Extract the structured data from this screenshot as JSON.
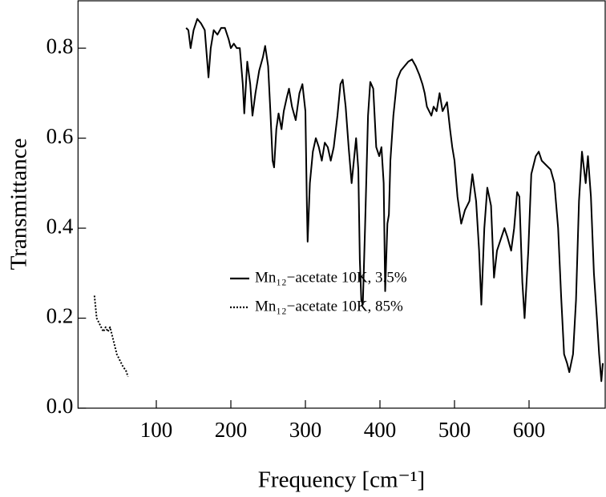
{
  "chart_data": {
    "type": "line",
    "x_label": "Frequency [cm⁻¹]",
    "y_label": "Transmittance",
    "xlim": [
      -5,
      700
    ],
    "ylim": [
      0,
      0.907
    ],
    "xticks": [
      100,
      200,
      300,
      400,
      500,
      600
    ],
    "yticks": [
      {
        "value": 0,
        "label": "0.0"
      },
      0.2,
      0.4,
      0.6,
      0.8
    ],
    "series": [
      {
        "name": "Mn₁₂−acetate 10K, 3.5%",
        "color": "#000000",
        "dash": "solid",
        "x": [
          140,
          143,
          146,
          150,
          155,
          160,
          165,
          170,
          173,
          177,
          182,
          187,
          192,
          197,
          200,
          204,
          208,
          212,
          216,
          218,
          222,
          226,
          229,
          233,
          238,
          243,
          246,
          250,
          253,
          256,
          258,
          261,
          264,
          268,
          271,
          275,
          278,
          282,
          287,
          292,
          296,
          300,
          302,
          303,
          306,
          310,
          314,
          318,
          322,
          326,
          330,
          334,
          338,
          343,
          347,
          350,
          354,
          358,
          362,
          365,
          368,
          371,
          373,
          375,
          377,
          380,
          384,
          387,
          391,
          395,
          399,
          402,
          405,
          407,
          410,
          412,
          414,
          418,
          423,
          428,
          433,
          438,
          443,
          448,
          453,
          457,
          460,
          463,
          466,
          469,
          472,
          476,
          480,
          484,
          487,
          490,
          494,
          497,
          500,
          504,
          509,
          514,
          520,
          524,
          529,
          533,
          536,
          540,
          544,
          549,
          553,
          557,
          563,
          567,
          571,
          576,
          580,
          584,
          587,
          591,
          594,
          599,
          603,
          609,
          613,
          617,
          623,
          629,
          634,
          639,
          643,
          647,
          651,
          654,
          659,
          663,
          667,
          671,
          676,
          679,
          683,
          687,
          691,
          694,
          697,
          699
        ],
        "values": [
          0.845,
          0.84,
          0.8,
          0.84,
          0.865,
          0.855,
          0.84,
          0.735,
          0.8,
          0.84,
          0.83,
          0.845,
          0.845,
          0.82,
          0.8,
          0.81,
          0.8,
          0.8,
          0.72,
          0.655,
          0.77,
          0.72,
          0.65,
          0.7,
          0.75,
          0.78,
          0.805,
          0.76,
          0.66,
          0.55,
          0.535,
          0.62,
          0.655,
          0.62,
          0.66,
          0.69,
          0.71,
          0.67,
          0.64,
          0.7,
          0.72,
          0.66,
          0.45,
          0.37,
          0.5,
          0.57,
          0.6,
          0.58,
          0.55,
          0.59,
          0.58,
          0.55,
          0.58,
          0.65,
          0.72,
          0.73,
          0.67,
          0.58,
          0.5,
          0.55,
          0.6,
          0.53,
          0.33,
          0.24,
          0.23,
          0.4,
          0.65,
          0.725,
          0.71,
          0.58,
          0.56,
          0.58,
          0.5,
          0.26,
          0.41,
          0.43,
          0.55,
          0.65,
          0.73,
          0.75,
          0.76,
          0.77,
          0.775,
          0.76,
          0.74,
          0.72,
          0.7,
          0.67,
          0.66,
          0.65,
          0.67,
          0.66,
          0.7,
          0.66,
          0.67,
          0.68,
          0.62,
          0.58,
          0.55,
          0.47,
          0.41,
          0.44,
          0.46,
          0.52,
          0.46,
          0.35,
          0.23,
          0.4,
          0.49,
          0.45,
          0.29,
          0.35,
          0.38,
          0.4,
          0.38,
          0.35,
          0.4,
          0.48,
          0.47,
          0.28,
          0.2,
          0.35,
          0.52,
          0.56,
          0.57,
          0.55,
          0.54,
          0.53,
          0.5,
          0.4,
          0.25,
          0.12,
          0.1,
          0.08,
          0.12,
          0.24,
          0.46,
          0.57,
          0.5,
          0.56,
          0.47,
          0.3,
          0.2,
          0.12,
          0.06,
          0.1
        ]
      },
      {
        "name": "Mn₁₂−acetate 10K, 85%",
        "color": "#000000",
        "dash": "dotted",
        "x": [
          17,
          20,
          23,
          26,
          29,
          32,
          35,
          38,
          41,
          44,
          47,
          50,
          53,
          56,
          59,
          62
        ],
        "values": [
          0.25,
          0.2,
          0.19,
          0.18,
          0.17,
          0.18,
          0.17,
          0.18,
          0.16,
          0.14,
          0.12,
          0.11,
          0.1,
          0.09,
          0.085,
          0.07
        ]
      }
    ]
  }
}
